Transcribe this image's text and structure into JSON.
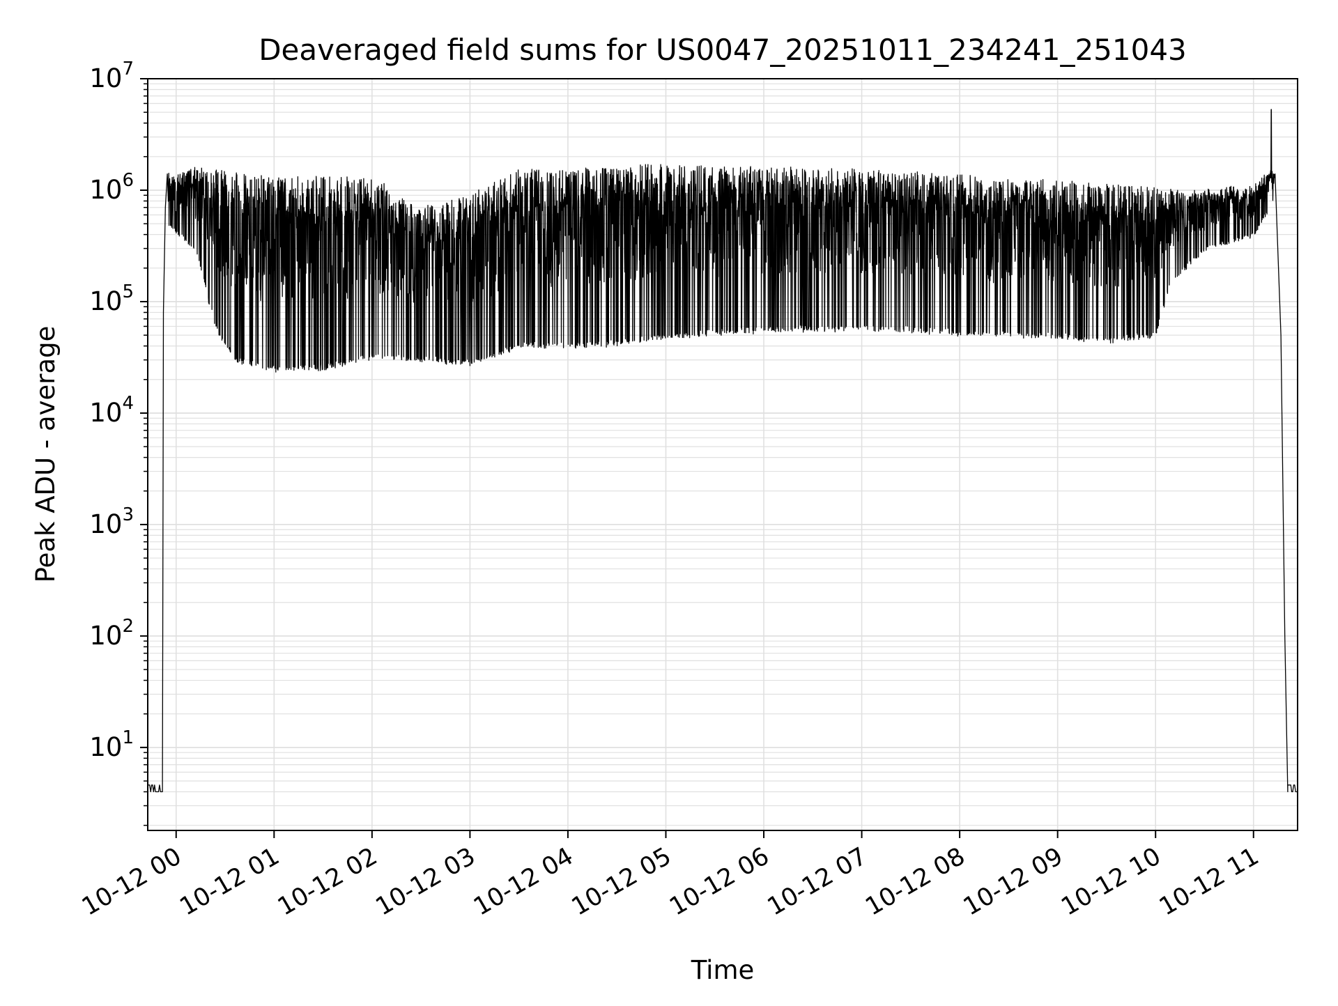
{
  "chart_data": {
    "type": "line",
    "title": "Deaveraged field sums for US0047_20251011_234241_251043",
    "xlabel": "Time",
    "ylabel": "Peak ADU - average",
    "yscale": "log",
    "ylim": [
      1.8,
      10000000
    ],
    "xlim_hours": [
      -0.29,
      11.45
    ],
    "grid": true,
    "legend": "none",
    "line_color": "#000000",
    "grid_color": "#e0e0e0",
    "x_ticks": [
      {
        "hour": 0,
        "label": "10-12 00"
      },
      {
        "hour": 1,
        "label": "10-12 01"
      },
      {
        "hour": 2,
        "label": "10-12 02"
      },
      {
        "hour": 3,
        "label": "10-12 03"
      },
      {
        "hour": 4,
        "label": "10-12 04"
      },
      {
        "hour": 5,
        "label": "10-12 05"
      },
      {
        "hour": 6,
        "label": "10-12 06"
      },
      {
        "hour": 7,
        "label": "10-12 07"
      },
      {
        "hour": 8,
        "label": "10-12 08"
      },
      {
        "hour": 9,
        "label": "10-12 09"
      },
      {
        "hour": 10,
        "label": "10-12 10"
      },
      {
        "hour": 11,
        "label": "10-12 11"
      }
    ],
    "y_ticks": [
      {
        "exp": 1,
        "base": "10",
        "sup": "1"
      },
      {
        "exp": 2,
        "base": "10",
        "sup": "2"
      },
      {
        "exp": 3,
        "base": "10",
        "sup": "3"
      },
      {
        "exp": 4,
        "base": "10",
        "sup": "4"
      },
      {
        "exp": 5,
        "base": "10",
        "sup": "5"
      },
      {
        "exp": 6,
        "base": "10",
        "sup": "6"
      },
      {
        "exp": 7,
        "base": "10",
        "sup": "7"
      }
    ],
    "series": [
      {
        "name": "field sums",
        "baseline_value": 4,
        "ramp_up": [
          [
            -0.14,
            4
          ],
          [
            -0.13,
            80000
          ],
          [
            -0.11,
            700000
          ],
          [
            -0.09,
            1400000
          ]
        ],
        "ramp_down": [
          [
            11.22,
            1400000
          ],
          [
            11.28,
            50000
          ],
          [
            11.32,
            100
          ],
          [
            11.35,
            4
          ]
        ],
        "spike": [
          11.18,
          5300000
        ],
        "envelope": [
          {
            "hour": -0.08,
            "upper": 1400000,
            "lower": 500000
          },
          {
            "hour": 0.2,
            "upper": 1600000,
            "lower": 300000
          },
          {
            "hour": 0.4,
            "upper": 1500000,
            "lower": 60000
          },
          {
            "hour": 0.6,
            "upper": 1400000,
            "lower": 30000
          },
          {
            "hour": 1.0,
            "upper": 1300000,
            "lower": 25000
          },
          {
            "hour": 1.5,
            "upper": 1300000,
            "lower": 25000
          },
          {
            "hour": 2.0,
            "upper": 1300000,
            "lower": 32000
          },
          {
            "hour": 2.5,
            "upper": 700000,
            "lower": 30000
          },
          {
            "hour": 3.0,
            "upper": 900000,
            "lower": 28000
          },
          {
            "hour": 3.5,
            "upper": 1500000,
            "lower": 40000
          },
          {
            "hour": 4.0,
            "upper": 1500000,
            "lower": 40000
          },
          {
            "hour": 4.5,
            "upper": 1600000,
            "lower": 42000
          },
          {
            "hour": 5.0,
            "upper": 1700000,
            "lower": 48000
          },
          {
            "hour": 5.5,
            "upper": 1600000,
            "lower": 52000
          },
          {
            "hour": 6.0,
            "upper": 1600000,
            "lower": 55000
          },
          {
            "hour": 6.5,
            "upper": 1600000,
            "lower": 57000
          },
          {
            "hour": 7.0,
            "upper": 1500000,
            "lower": 57000
          },
          {
            "hour": 7.5,
            "upper": 1450000,
            "lower": 56000
          },
          {
            "hour": 8.0,
            "upper": 1350000,
            "lower": 52000
          },
          {
            "hour": 8.5,
            "upper": 1250000,
            "lower": 50000
          },
          {
            "hour": 9.0,
            "upper": 1200000,
            "lower": 48000
          },
          {
            "hour": 9.5,
            "upper": 1100000,
            "lower": 45000
          },
          {
            "hour": 10.0,
            "upper": 1050000,
            "lower": 50000
          },
          {
            "hour": 10.15,
            "upper": 1000000,
            "lower": 150000
          },
          {
            "hour": 10.5,
            "upper": 1000000,
            "lower": 300000
          },
          {
            "hour": 11.0,
            "upper": 1100000,
            "lower": 400000
          },
          {
            "hour": 11.2,
            "upper": 1600000,
            "lower": 800000
          }
        ]
      }
    ]
  }
}
